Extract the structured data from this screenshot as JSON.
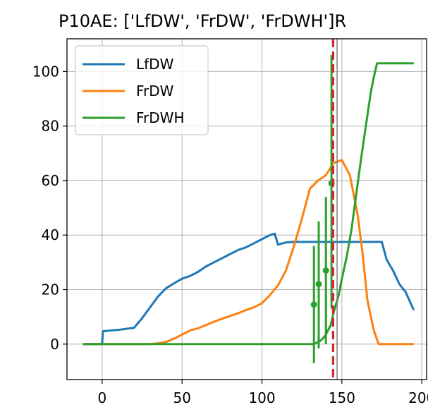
{
  "chart_data": {
    "type": "line",
    "title": "P10AE: ['LfDW', 'FrDW', 'FrDWH']R",
    "xlabel": "",
    "ylabel": "",
    "xlim": [
      -22,
      203
    ],
    "ylim": [
      -13,
      112
    ],
    "xticks": [
      0,
      50,
      100,
      150,
      200
    ],
    "yticks": [
      0,
      20,
      40,
      60,
      80,
      100
    ],
    "grid": true,
    "legend_position": "top-left",
    "vlines": [
      {
        "x": 144.5,
        "color": "#d62728",
        "style": "dashed"
      },
      {
        "x": 147,
        "color": "#808080",
        "style": "solid"
      }
    ],
    "series": [
      {
        "name": "LfDW",
        "color": "#1f77b4",
        "x": [
          -12,
          -1,
          0,
          0.5,
          5,
          10,
          15,
          20,
          25,
          30,
          35,
          40,
          45,
          50,
          55,
          60,
          65,
          70,
          75,
          80,
          85,
          90,
          95,
          100,
          105,
          108,
          110,
          115,
          120,
          130,
          140,
          150,
          160,
          170,
          175,
          178,
          182,
          186,
          190,
          193,
          195
        ],
        "y": [
          0,
          0,
          0.3,
          4.7,
          5.0,
          5.2,
          5.6,
          6.0,
          9.5,
          13.5,
          17.5,
          20.5,
          22.3,
          24.0,
          25.0,
          26.5,
          28.5,
          30.0,
          31.5,
          33.0,
          34.5,
          35.5,
          37.0,
          38.5,
          40.0,
          40.5,
          36.5,
          37.3,
          37.5,
          37.5,
          37.5,
          37.5,
          37.5,
          37.5,
          37.5,
          31.0,
          27.0,
          22.0,
          19.0,
          15.0,
          12.5
        ]
      },
      {
        "name": "FrDW",
        "color": "#ff7f0e",
        "x": [
          -12,
          30,
          35,
          40,
          45,
          50,
          55,
          60,
          65,
          70,
          75,
          80,
          85,
          90,
          95,
          100,
          105,
          110,
          115,
          120,
          125,
          130,
          135,
          140,
          145,
          150,
          155,
          160,
          163,
          166,
          170,
          173,
          180,
          195
        ],
        "y": [
          0,
          0,
          0.3,
          0.8,
          2.0,
          3.5,
          5.0,
          5.8,
          7.0,
          8.2,
          9.3,
          10.3,
          11.3,
          12.5,
          13.5,
          15.0,
          18.0,
          21.5,
          27.0,
          36.0,
          46.0,
          57.0,
          60.0,
          62.0,
          66.5,
          67.5,
          62.0,
          47.0,
          33.0,
          16.0,
          5.0,
          0.0,
          0.0,
          0.0
        ]
      },
      {
        "name": "FrDWH",
        "color": "#2ca02c",
        "x": [
          -12,
          132,
          134,
          136,
          138,
          140,
          143,
          145,
          148,
          150,
          153,
          156,
          159,
          162,
          165,
          168,
          170,
          172,
          175,
          195
        ],
        "y": [
          0,
          0,
          0.5,
          1.0,
          2.0,
          3.5,
          7.0,
          12.0,
          18.0,
          24.0,
          32.0,
          42.0,
          55.0,
          68.0,
          80.0,
          92.0,
          98.0,
          103.0,
          103.0,
          103.0
        ],
        "errorbars": [
          {
            "x": 132.5,
            "y": 14.5,
            "low": -7.0,
            "high": 36.0
          },
          {
            "x": 135.5,
            "y": 22.0,
            "low": -1.5,
            "high": 45.0
          },
          {
            "x": 140.0,
            "y": 27.0,
            "low": 0.0,
            "high": 54.0
          },
          {
            "x": 143.5,
            "y": 59.0,
            "low": 13.0,
            "high": 106.0
          }
        ]
      }
    ]
  }
}
